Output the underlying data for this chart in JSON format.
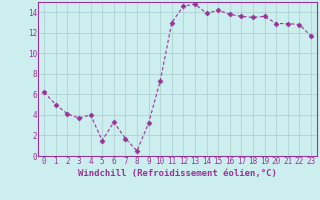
{
  "x": [
    0,
    1,
    2,
    3,
    4,
    5,
    6,
    7,
    8,
    9,
    10,
    11,
    12,
    13,
    14,
    15,
    16,
    17,
    18,
    19,
    20,
    21,
    22,
    23
  ],
  "y": [
    6.2,
    5.0,
    4.1,
    3.7,
    4.0,
    1.5,
    3.3,
    1.7,
    0.5,
    3.2,
    7.3,
    13.0,
    14.6,
    14.8,
    13.9,
    14.2,
    13.8,
    13.6,
    13.5,
    13.6,
    12.9,
    12.9,
    12.8,
    11.7
  ],
  "xlim_min": -0.5,
  "xlim_max": 23.5,
  "ylim_min": 0,
  "ylim_max": 15,
  "yticks": [
    0,
    2,
    4,
    6,
    8,
    10,
    12,
    14
  ],
  "xticks": [
    0,
    1,
    2,
    3,
    4,
    5,
    6,
    7,
    8,
    9,
    10,
    11,
    12,
    13,
    14,
    15,
    16,
    17,
    18,
    19,
    20,
    21,
    22,
    23
  ],
  "xlabel": "Windchill (Refroidissement éolien,°C)",
  "line_color": "#993399",
  "marker": "D",
  "marker_size": 2.5,
  "bg_color": "#cceeee",
  "grid_color": "#aacccc",
  "spine_color": "#993399",
  "tick_color": "#993399",
  "label_color": "#993399",
  "tick_fontsize": 5.5,
  "xlabel_fontsize": 6.5
}
